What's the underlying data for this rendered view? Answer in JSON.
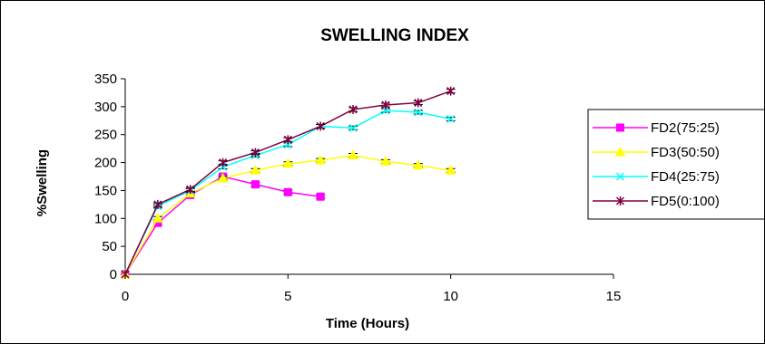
{
  "chart_data": {
    "type": "line",
    "title": "SWELLING INDEX",
    "xlabel": "Time (Hours)",
    "ylabel": "%Swelling",
    "xlim": [
      0,
      15
    ],
    "ylim": [
      0,
      350
    ],
    "xticks": [
      0,
      5,
      10,
      15
    ],
    "yticks": [
      0,
      50,
      100,
      150,
      200,
      250,
      300,
      350
    ],
    "grid": false,
    "legend_position": "right",
    "error_bars": true,
    "series": [
      {
        "name": "FD2(75:25)",
        "color": "#FF00FF",
        "marker": "square",
        "x": [
          0,
          1,
          2,
          3,
          4,
          5,
          6
        ],
        "y": [
          0,
          92,
          142,
          175,
          161,
          147,
          139
        ]
      },
      {
        "name": "FD3(50:50)",
        "color": "#FFFF00",
        "marker": "triangle",
        "x": [
          0,
          1,
          2,
          3,
          4,
          5,
          6,
          7,
          8,
          9,
          10
        ],
        "y": [
          0,
          100,
          145,
          172,
          186,
          198,
          204,
          213,
          202,
          195,
          186
        ]
      },
      {
        "name": "FD4(25:75)",
        "color": "#00FFFF",
        "marker": "x",
        "x": [
          0,
          1,
          2,
          3,
          4,
          5,
          6,
          7,
          8,
          9,
          10
        ],
        "y": [
          0,
          122,
          150,
          192,
          213,
          232,
          265,
          262,
          293,
          290,
          278
        ]
      },
      {
        "name": "FD5(0:100)",
        "color": "#800040",
        "marker": "star",
        "x": [
          0,
          1,
          2,
          3,
          4,
          5,
          6,
          7,
          8,
          9,
          10
        ],
        "y": [
          0,
          125,
          152,
          200,
          218,
          241,
          265,
          295,
          303,
          307,
          328
        ]
      }
    ]
  }
}
